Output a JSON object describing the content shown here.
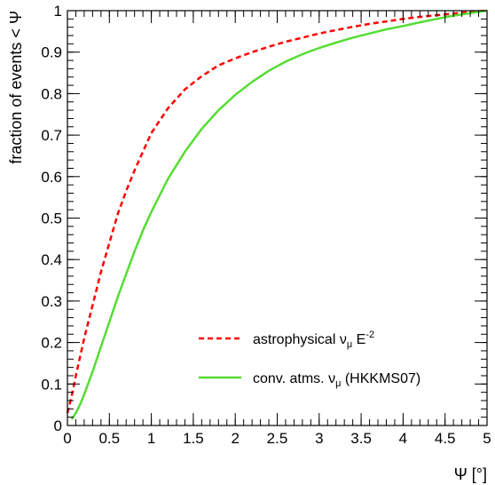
{
  "chart_data": {
    "type": "line",
    "xlabel": "Ψ [°]",
    "ylabel": "fraction of events < Ψ",
    "xlim": [
      0,
      5
    ],
    "ylim": [
      0,
      1
    ],
    "xticks": [
      "0",
      "0.5",
      "1",
      "1.5",
      "2",
      "2.5",
      "3",
      "3.5",
      "4",
      "4.5",
      "5"
    ],
    "yticks": [
      "0",
      "0.1",
      "0.2",
      "0.3",
      "0.4",
      "0.5",
      "0.6",
      "0.7",
      "0.8",
      "0.9",
      "1"
    ],
    "grid": false,
    "legend_position": "lower-right",
    "series": [
      {
        "name": "astrophysical ν_μ E^-2",
        "legend": {
          "main": "astrophysical ν",
          "sub": "μ",
          "tail": " E",
          "sup": "-2"
        },
        "color": "#ff0000",
        "style": "dashed",
        "x": [
          0,
          0.05,
          0.1,
          0.2,
          0.3,
          0.4,
          0.5,
          0.6,
          0.7,
          0.8,
          0.9,
          1.0,
          1.2,
          1.4,
          1.6,
          1.8,
          2.0,
          2.2,
          2.4,
          2.6,
          2.8,
          3.0,
          3.2,
          3.4,
          3.6,
          3.8,
          4.0,
          4.2,
          4.4,
          4.6,
          4.8,
          5.0
        ],
        "y": [
          0.03,
          0.07,
          0.12,
          0.21,
          0.29,
          0.37,
          0.44,
          0.51,
          0.565,
          0.615,
          0.66,
          0.705,
          0.765,
          0.81,
          0.842,
          0.868,
          0.885,
          0.9,
          0.913,
          0.925,
          0.935,
          0.945,
          0.953,
          0.961,
          0.968,
          0.974,
          0.98,
          0.985,
          0.989,
          0.993,
          0.997,
          1.0
        ]
      },
      {
        "name": "conv. atms. ν_μ (HKKMS07)",
        "legend": {
          "main": "conv. atms. ν",
          "sub": "μ",
          "tail": " (HKKMS07)",
          "sup": ""
        },
        "color": "#55dd33",
        "style": "solid",
        "x": [
          0.05,
          0.1,
          0.15,
          0.2,
          0.3,
          0.4,
          0.5,
          0.6,
          0.7,
          0.8,
          0.9,
          1.0,
          1.2,
          1.4,
          1.6,
          1.8,
          2.0,
          2.2,
          2.4,
          2.6,
          2.8,
          3.0,
          3.2,
          3.4,
          3.6,
          3.8,
          4.0,
          4.2,
          4.4,
          4.6,
          4.8,
          5.0
        ],
        "y": [
          0.015,
          0.03,
          0.05,
          0.075,
          0.13,
          0.19,
          0.25,
          0.31,
          0.365,
          0.42,
          0.47,
          0.515,
          0.595,
          0.66,
          0.715,
          0.76,
          0.797,
          0.828,
          0.855,
          0.877,
          0.895,
          0.91,
          0.923,
          0.935,
          0.945,
          0.955,
          0.963,
          0.972,
          0.98,
          0.988,
          0.994,
          1.0
        ]
      }
    ]
  }
}
